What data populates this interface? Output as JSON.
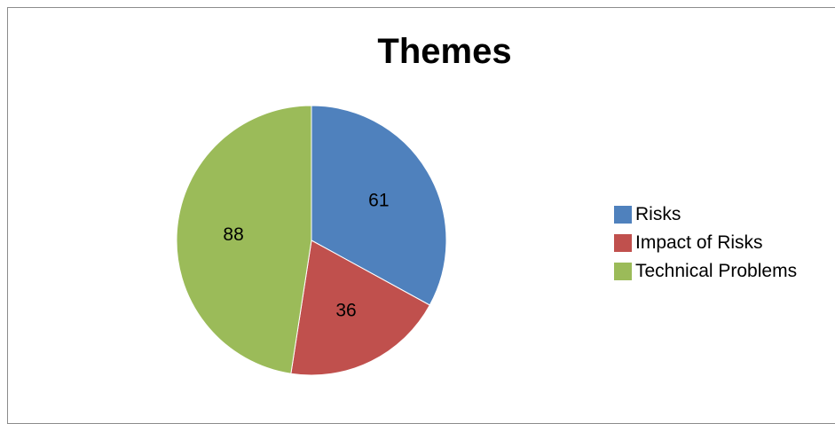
{
  "chart_data": {
    "type": "pie",
    "title": "Themes",
    "categories": [
      "Risks",
      "Impact of Risks",
      "Technical Problems"
    ],
    "values": [
      61,
      36,
      88
    ],
    "colors": [
      "#4f81bd",
      "#c0504d",
      "#9bbb59"
    ],
    "data_labels": [
      "61",
      "36",
      "88"
    ],
    "start_angle": "12 o'clock, clockwise",
    "legend": "right"
  }
}
